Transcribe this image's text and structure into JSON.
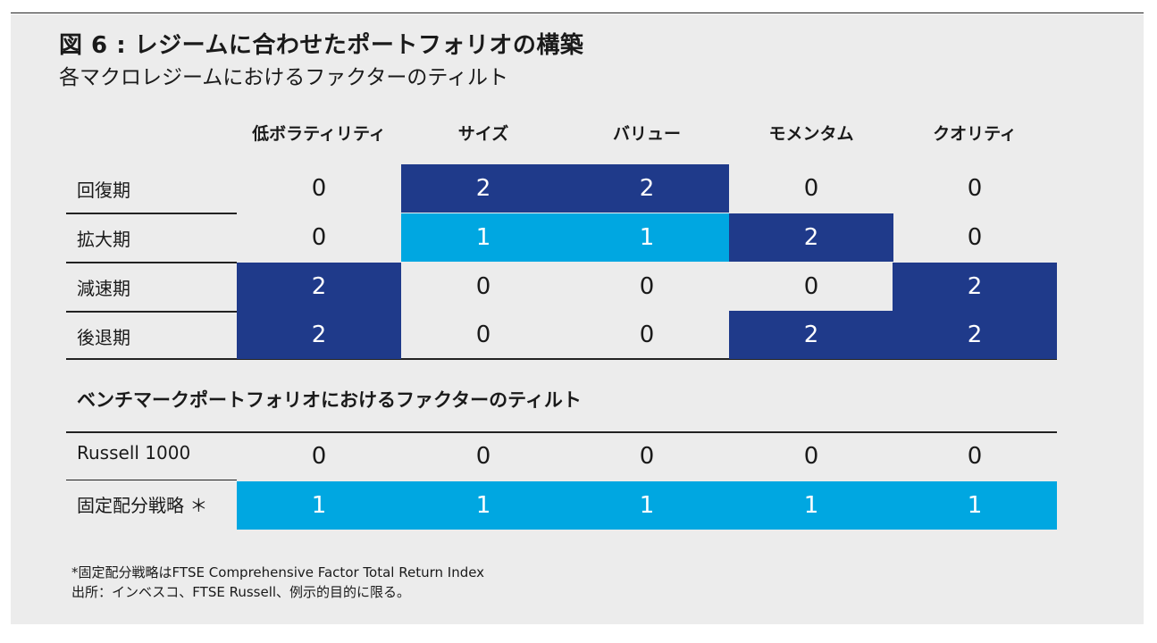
{
  "title": "図 6 : レジームに合わせたポートフォリオの構築",
  "subtitle": "各マクロレジームにおけるファクターのティルト",
  "columns": [
    "低ボラティリティ",
    "サイズ",
    "バリュー",
    "モメンタム",
    "クオリティ"
  ],
  "regime_rows": [
    {
      "label": "回復期",
      "values": [
        "0",
        "2",
        "2",
        "0",
        "0"
      ]
    },
    {
      "label": "拡大期",
      "values": [
        "0",
        "1",
        "1",
        "2",
        "0"
      ]
    },
    {
      "label": "減速期",
      "values": [
        "2",
        "0",
        "0",
        "0",
        "2"
      ]
    },
    {
      "label": "後退期",
      "values": [
        "2",
        "0",
        "0",
        "2",
        "2"
      ]
    }
  ],
  "benchmark_heading": "ベンチマークポートフォリオにおけるファクターのティルト",
  "benchmark_rows": [
    {
      "label": "Russell 1000",
      "values": [
        "0",
        "0",
        "0",
        "0",
        "0"
      ]
    },
    {
      "label": "固定配分戦略 ＊",
      "values": [
        "1",
        "1",
        "1",
        "1",
        "1"
      ]
    }
  ],
  "footnotes": [
    "*固定配分戦略はFTSE Comprehensive Factor Total Return Index",
    "出所：インベスコ、FTSE Russell、例示的目的に限る。"
  ],
  "colors": {
    "tilt_2": "#1f3a8a",
    "tilt_1": "#00a7e1",
    "background": "#ececec"
  }
}
